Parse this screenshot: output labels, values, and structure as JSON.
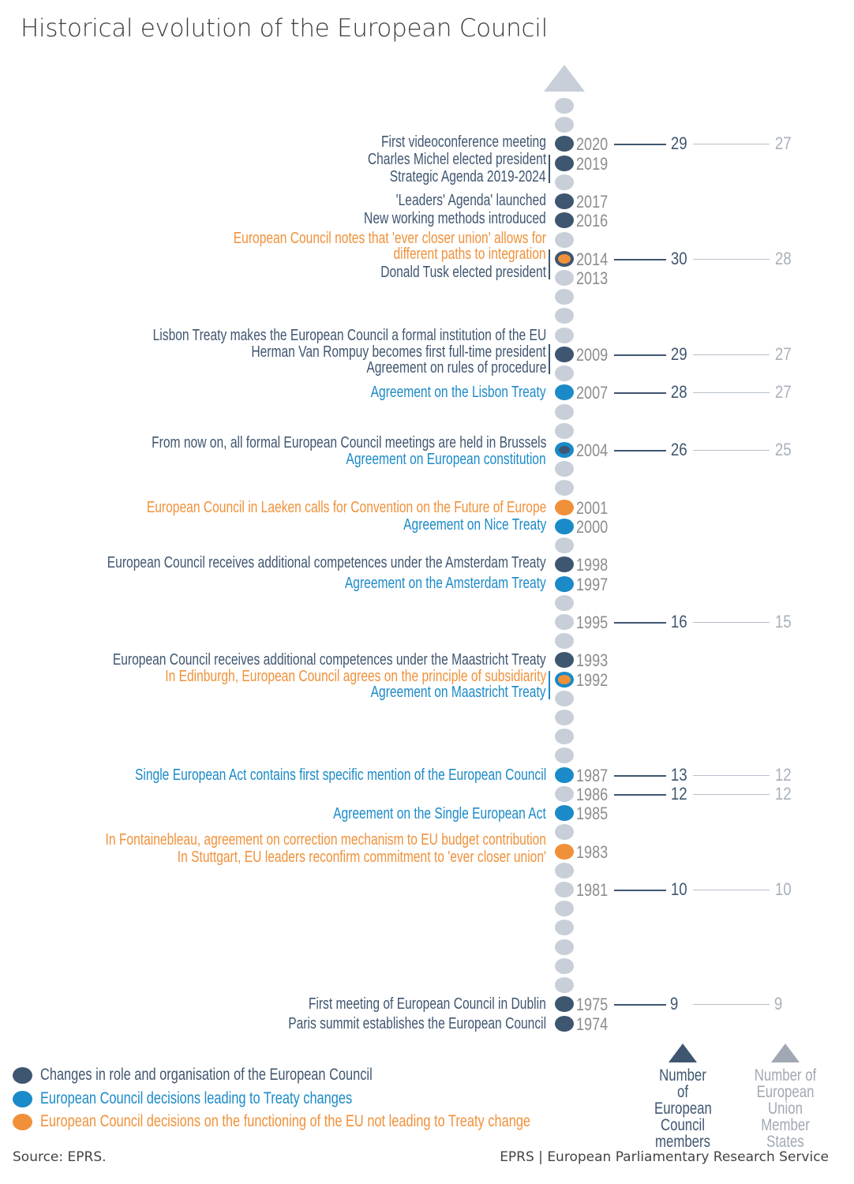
{
  "title": "Historical evolution of the European Council",
  "colors": {
    "dark": "#3f5670",
    "blue": "#1b8ac8",
    "orange": "#f0913a",
    "grey": "#c8cfd8"
  },
  "timeline": {
    "first_year": 2022,
    "last_year": 1974,
    "dots": {
      "2020": "dark",
      "2019": "dark",
      "2017": "dark",
      "2016": "dark",
      "2014": "orange-ring-dark",
      "2009": "dark",
      "2007": "blue",
      "2004": "dark-ring-blue",
      "2001": "orange",
      "2000": "blue",
      "1998": "dark",
      "1997": "blue",
      "1993": "dark",
      "1992": "orange-ring-blue",
      "1987": "blue",
      "1985": "blue",
      "1983": "orange",
      "1975": "dark",
      "1974": "dark"
    },
    "labeled_years": [
      2020,
      2019,
      2017,
      2016,
      2014,
      2013,
      2009,
      2007,
      2004,
      2001,
      2000,
      1998,
      1997,
      1995,
      1993,
      1992,
      1987,
      1986,
      1985,
      1983,
      1981,
      1975,
      1974
    ]
  },
  "events": [
    {
      "text": "First videoconference meeting",
      "cat": "dark"
    },
    {
      "text": "Charles Michel elected president",
      "cat": "dark"
    },
    {
      "text": "Strategic Agenda 2019-2024",
      "cat": "dark"
    },
    {
      "text": "'Leaders' Agenda' launched",
      "cat": "dark"
    },
    {
      "text": "New working methods introduced",
      "cat": "dark"
    },
    {
      "text": "European Council notes that 'ever closer union' allows for",
      "cat": "orange"
    },
    {
      "text": "different paths to integration",
      "cat": "orange"
    },
    {
      "text": "Donald Tusk elected president",
      "cat": "dark"
    },
    {
      "text": "Lisbon Treaty makes the European Council a formal institution of the EU",
      "cat": "dark"
    },
    {
      "text": "Herman Van Rompuy  becomes first full-time president",
      "cat": "dark"
    },
    {
      "text": "Agreement on rules of procedure",
      "cat": "dark"
    },
    {
      "text": "Agreement on the Lisbon Treaty",
      "cat": "blue"
    },
    {
      "text": "From now on, all formal European Council meetings are held in Brussels",
      "cat": "dark"
    },
    {
      "text": "Agreement on European constitution",
      "cat": "blue"
    },
    {
      "text": "European Council in Laeken calls for Convention on the Future of Europe",
      "cat": "orange"
    },
    {
      "text": "Agreement on Nice Treaty",
      "cat": "blue"
    },
    {
      "text": "European Council receives additional competences under the Amsterdam Treaty",
      "cat": "dark"
    },
    {
      "text": "Agreement on the Amsterdam Treaty",
      "cat": "blue"
    },
    {
      "text": "European Council receives additional competences under the Maastricht Treaty",
      "cat": "dark"
    },
    {
      "text": "In Edinburgh, European Council agrees on the principle of subsidiarity",
      "cat": "orange"
    },
    {
      "text": "Agreement on Maastricht Treaty",
      "cat": "blue"
    },
    {
      "text": "Single European Act contains first  specific mention of the European Council",
      "cat": "blue"
    },
    {
      "text": "Agreement on the Single European Act",
      "cat": "blue"
    },
    {
      "text": "In Fontainebleau, agreement on correction mechanism to EU budget contribution",
      "cat": "orange"
    },
    {
      "text": "In Stuttgart, EU leaders reconfirm commitment to 'ever closer union'",
      "cat": "orange"
    },
    {
      "text": "First meeting of European Council in Dublin",
      "cat": "dark"
    },
    {
      "text": "Paris summit establishes the European Council",
      "cat": "dark"
    }
  ],
  "membership": [
    {
      "year": 2020,
      "council": 29,
      "states": 27
    },
    {
      "year": 2014,
      "council": 30,
      "states": 28
    },
    {
      "year": 2009,
      "council": 29,
      "states": 27
    },
    {
      "year": 2007,
      "council": 28,
      "states": 27
    },
    {
      "year": 2004,
      "council": 26,
      "states": 25
    },
    {
      "year": 1995,
      "council": 16,
      "states": 15
    },
    {
      "year": 1987,
      "council": 13,
      "states": 12
    },
    {
      "year": 1986,
      "council": 12,
      "states": 12
    },
    {
      "year": 1981,
      "council": 10,
      "states": 10
    },
    {
      "year": 1975,
      "council": 9,
      "states": 9
    }
  ],
  "legend": [
    {
      "label": "Changes in role and organisation of the European Council",
      "cat": "dark"
    },
    {
      "label": "European Council decisions leading to Treaty changes",
      "cat": "blue"
    },
    {
      "label": "European Council decisions on the functioning of the EU not leading to Treaty change",
      "cat": "orange"
    }
  ],
  "columns": {
    "council": "Number of European Council members",
    "states": "Number of European Union Member States"
  },
  "footer": {
    "source": "Source: EPRS.",
    "credit": "EPRS | European Parliamentary Research Service"
  }
}
